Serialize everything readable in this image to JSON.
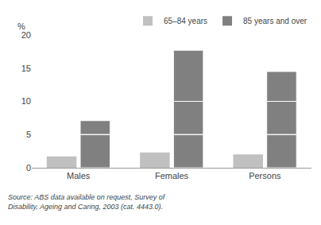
{
  "chart_data": {
    "type": "bar",
    "categories": [
      "Males",
      "Females",
      "Persons"
    ],
    "series": [
      {
        "name": "65–84 years",
        "color": "#c0c0c0",
        "values": [
          1.7,
          2.3,
          2.0
        ]
      },
      {
        "name": "85 years and over",
        "color": "#808080",
        "values": [
          7.1,
          17.7,
          14.5
        ],
        "segments": [
          [
            5.0,
            2.1
          ],
          [
            5.0,
            5.0,
            7.7
          ],
          [
            5.0,
            5.0,
            4.5
          ]
        ]
      }
    ],
    "ylabel": "%",
    "ylim": [
      0,
      20
    ],
    "yticks": [
      0,
      5,
      10,
      15,
      20
    ],
    "grid": false,
    "legend": "upper right",
    "source": "Source: ABS data available on request, Survey of Disability, Ageing and Caring, 2003 (cat. 4443.0)."
  }
}
